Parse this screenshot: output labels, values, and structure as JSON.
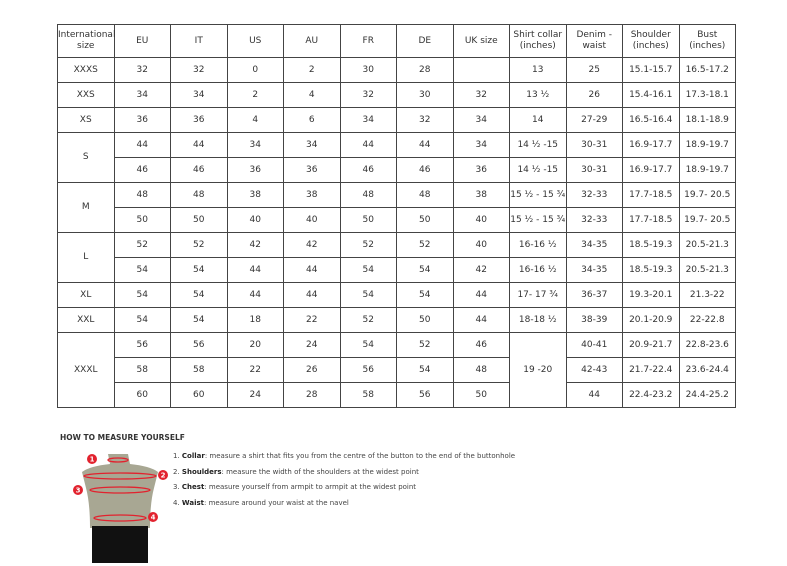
{
  "headers": [
    "International size",
    "EU",
    "IT",
    "US",
    "AU",
    "FR",
    "DE",
    "UK size",
    "Shirt collar (inches)",
    "Denim - waist",
    "Shoulder (inches)",
    "Bust (inches)"
  ],
  "groups": [
    {
      "size": "XXXS",
      "rows": [
        {
          "eu": "32",
          "it": "32",
          "us": "0",
          "au": "2",
          "fr": "30",
          "de": "28",
          "uk": "",
          "collar": "13",
          "denim": "25",
          "shoulder": "15.1-15.7",
          "bust": "16.5-17.2"
        }
      ]
    },
    {
      "size": "XXS",
      "rows": [
        {
          "eu": "34",
          "it": "34",
          "us": "2",
          "au": "4",
          "fr": "32",
          "de": "30",
          "uk": "32",
          "collar": "13 ½",
          "denim": "26",
          "shoulder": "15.4-16.1",
          "bust": "17.3-18.1"
        }
      ]
    },
    {
      "size": "XS",
      "rows": [
        {
          "eu": "36",
          "it": "36",
          "us": "4",
          "au": "6",
          "fr": "34",
          "de": "32",
          "uk": "34",
          "collar": "14",
          "denim": "27-29",
          "shoulder": "16.5-16.4",
          "bust": "18.1-18.9"
        }
      ]
    },
    {
      "size": "S",
      "rows": [
        {
          "eu": "44",
          "it": "44",
          "us": "34",
          "au": "34",
          "fr": "44",
          "de": "44",
          "uk": "34",
          "collar": "14 ½ -15",
          "denim": "30-31",
          "shoulder": "16.9-17.7",
          "bust": "18.9-19.7"
        },
        {
          "eu": "46",
          "it": "46",
          "us": "36",
          "au": "36",
          "fr": "46",
          "de": "46",
          "uk": "36",
          "collar": "14 ½ -15",
          "denim": "30-31",
          "shoulder": "16.9-17.7",
          "bust": "18.9-19.7"
        }
      ]
    },
    {
      "size": "M",
      "rows": [
        {
          "eu": "48",
          "it": "48",
          "us": "38",
          "au": "38",
          "fr": "48",
          "de": "48",
          "uk": "38",
          "collar": "15 ½ - 15 ¾",
          "denim": "32-33",
          "shoulder": "17.7-18.5",
          "bust": "19.7- 20.5"
        },
        {
          "eu": "50",
          "it": "50",
          "us": "40",
          "au": "40",
          "fr": "50",
          "de": "50",
          "uk": "40",
          "collar": "15 ½ - 15 ¾",
          "denim": "32-33",
          "shoulder": "17.7-18.5",
          "bust": "19.7- 20.5"
        }
      ]
    },
    {
      "size": "L",
      "rows": [
        {
          "eu": "52",
          "it": "52",
          "us": "42",
          "au": "42",
          "fr": "52",
          "de": "52",
          "uk": "40",
          "collar": "16-16 ½",
          "denim": "34-35",
          "shoulder": "18.5-19.3",
          "bust": "20.5-21.3"
        },
        {
          "eu": "54",
          "it": "54",
          "us": "44",
          "au": "44",
          "fr": "54",
          "de": "54",
          "uk": "42",
          "collar": "16-16 ½",
          "denim": "34-35",
          "shoulder": "18.5-19.3",
          "bust": "20.5-21.3"
        }
      ]
    },
    {
      "size": "XL",
      "rows": [
        {
          "eu": "54",
          "it": "54",
          "us": "44",
          "au": "44",
          "fr": "54",
          "de": "54",
          "uk": "44",
          "collar": "17- 17 ¾",
          "denim": "36-37",
          "shoulder": "19.3-20.1",
          "bust": "21.3-22"
        }
      ]
    },
    {
      "size": "XXL",
      "rows": [
        {
          "eu": "54",
          "it": "54",
          "us": "18",
          "au": "22",
          "fr": "52",
          "de": "50",
          "uk": "44",
          "collar": "18-18 ½",
          "denim": "38-39",
          "shoulder": "20.1-20.9",
          "bust": "22-22.8"
        }
      ]
    },
    {
      "size": "XXXL",
      "collar": "19 -20",
      "rows": [
        {
          "eu": "56",
          "it": "56",
          "us": "20",
          "au": "24",
          "fr": "54",
          "de": "52",
          "uk": "46",
          "denim": "40-41",
          "shoulder": "20.9-21.7",
          "bust": "22.8-23.6"
        },
        {
          "eu": "58",
          "it": "58",
          "us": "22",
          "au": "26",
          "fr": "56",
          "de": "54",
          "uk": "48",
          "denim": "42-43",
          "shoulder": "21.7-22.4",
          "bust": "23.6-24.4"
        },
        {
          "eu": "60",
          "it": "60",
          "us": "24",
          "au": "28",
          "fr": "58",
          "de": "56",
          "uk": "50",
          "denim": "44",
          "shoulder": "22.4-23.2",
          "bust": "24.4-25.2"
        }
      ]
    }
  ],
  "howto": {
    "title": "HOW TO MEASURE YOURSELF",
    "markers": [
      "1",
      "2",
      "3",
      "4"
    ],
    "steps": [
      {
        "num": "1.",
        "term": "Collar",
        "text": ": measure a shirt that fits you from the centre of the button to the end of the buttonhole"
      },
      {
        "num": "2.",
        "term": "Shoulders",
        "text": ": measure the width of the shoulders at the widest point"
      },
      {
        "num": "3.",
        "term": "Chest",
        "text": ": measure yourself from armpit to armpit at the widest point"
      },
      {
        "num": "4.",
        "term": "Waist",
        "text": ": measure around your waist at the navel"
      }
    ],
    "colors": {
      "accent": "#e2222e",
      "body": "#a8a793",
      "shorts": "#111111"
    }
  }
}
